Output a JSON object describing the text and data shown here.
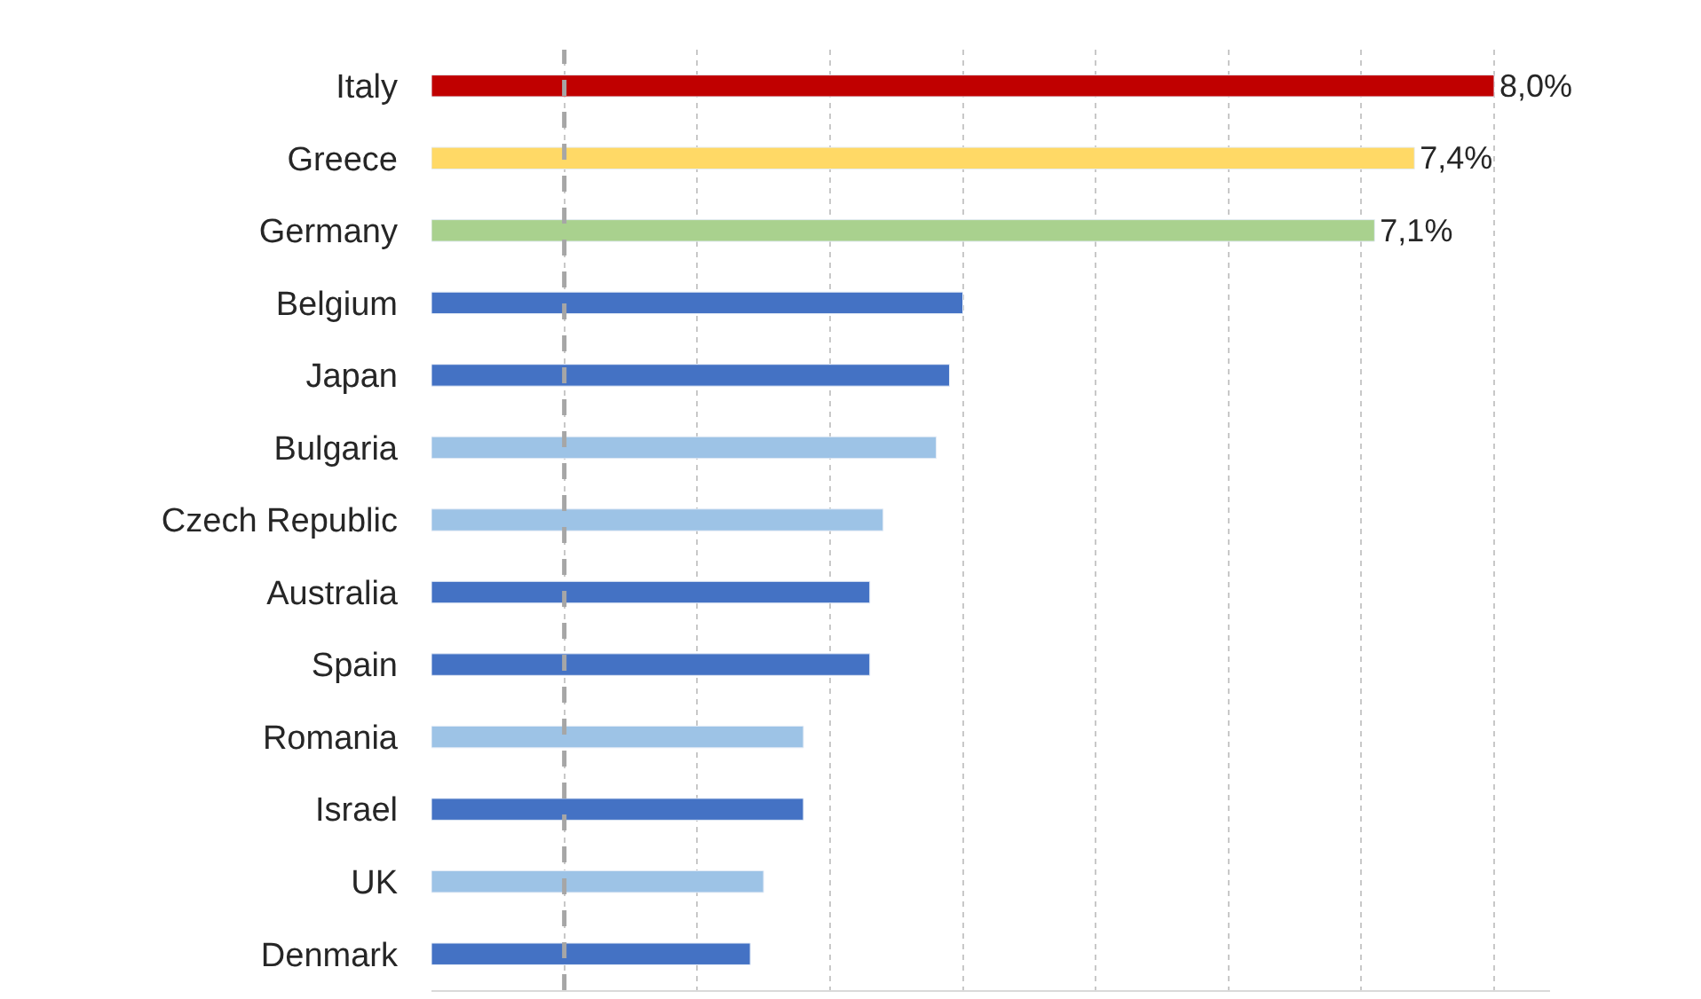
{
  "chart_data": {
    "type": "bar",
    "orientation": "horizontal",
    "categories": [
      "Italy",
      "Greece",
      "Germany",
      "Belgium",
      "Japan",
      "Bulgaria",
      "Czech Republic",
      "Australia",
      "Spain",
      "Romania",
      "Israel",
      "UK",
      "Denmark"
    ],
    "values": [
      8.0,
      7.4,
      7.1,
      4.0,
      3.9,
      3.8,
      3.4,
      3.3,
      3.3,
      2.8,
      2.8,
      2.5,
      2.4
    ],
    "colors": [
      "#c00000",
      "#ffd966",
      "#a9d18e",
      "#4472c4",
      "#4472c4",
      "#9dc3e6",
      "#9dc3e6",
      "#4472c4",
      "#4472c4",
      "#9dc3e6",
      "#4472c4",
      "#9dc3e6",
      "#4472c4"
    ],
    "value_labels": [
      "8,0%",
      "7,4%",
      "7,1%",
      null,
      null,
      null,
      null,
      null,
      null,
      null,
      null,
      null,
      null
    ],
    "tick_labels": "y",
    "grid": "x",
    "ref_lines": [
      {
        "axis": "x",
        "value": 1,
        "color": "#a6a6a6",
        "line_style": "dashed"
      }
    ]
  }
}
